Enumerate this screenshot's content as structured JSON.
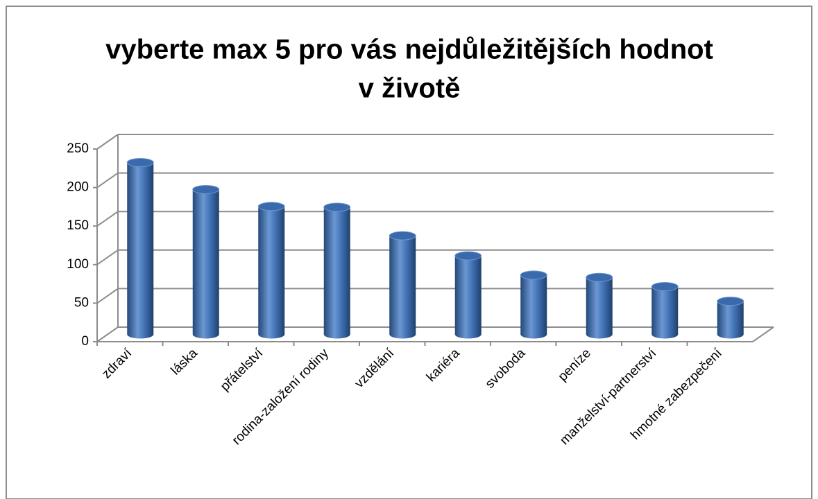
{
  "chart_data": {
    "type": "bar3d",
    "title": "vyberte max 5 pro vás nejdůležitějších hodnot",
    "subtitle": "v životě",
    "categories": [
      "zdraví",
      "láska",
      "přátelství",
      "rodina-založení rodiny",
      "vzdělání",
      "kariéra",
      "svoboda",
      "peníze",
      "manželství-partnerství",
      "hmotné zabezpečení"
    ],
    "values": [
      223,
      188,
      166,
      165,
      128,
      102,
      77,
      74,
      62,
      43
    ],
    "color": "#3a6aac",
    "ylim": [
      0,
      250
    ],
    "yticks": [
      0,
      50,
      100,
      150,
      200,
      250
    ],
    "grid": true
  }
}
